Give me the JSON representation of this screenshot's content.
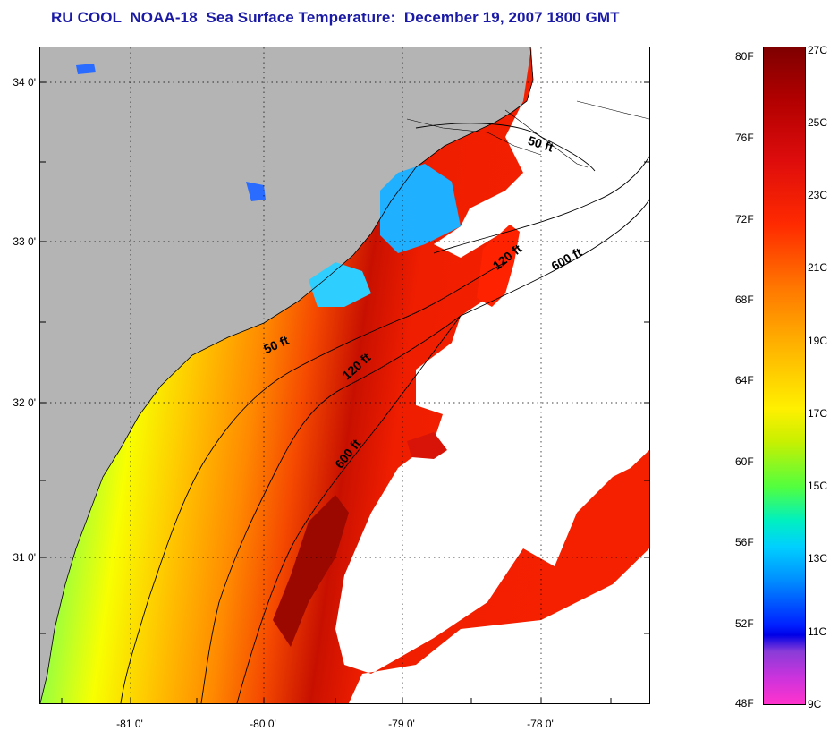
{
  "title": "RU COOL  NOAA-18  Sea Surface Temperature:  December 19, 2007 1800 GMT",
  "map": {
    "land_color": "#b4b4b4",
    "no_data_color": "#ffffff",
    "x_ticks": [
      "-81 0'",
      "-80 0'",
      "-79 0'",
      "-78 0'"
    ],
    "y_ticks": [
      "34 0'",
      "33 0'",
      "32 0'",
      "31 0'"
    ],
    "contour_labels": [
      {
        "text": "50 ft",
        "where": "north"
      },
      {
        "text": "120 ft",
        "where": "north"
      },
      {
        "text": "600 ft",
        "where": "north"
      },
      {
        "text": "50 ft",
        "where": "south"
      },
      {
        "text": "120 ft",
        "where": "south"
      },
      {
        "text": "600 ft",
        "where": "south"
      }
    ]
  },
  "colorbar": {
    "fahrenheit": [
      "80F",
      "76F",
      "72F",
      "68F",
      "64F",
      "60F",
      "56F",
      "52F",
      "48F"
    ],
    "celsius": [
      "27C",
      "25C",
      "23C",
      "21C",
      "19C",
      "17C",
      "15C",
      "13C",
      "11C",
      "9C"
    ]
  }
}
